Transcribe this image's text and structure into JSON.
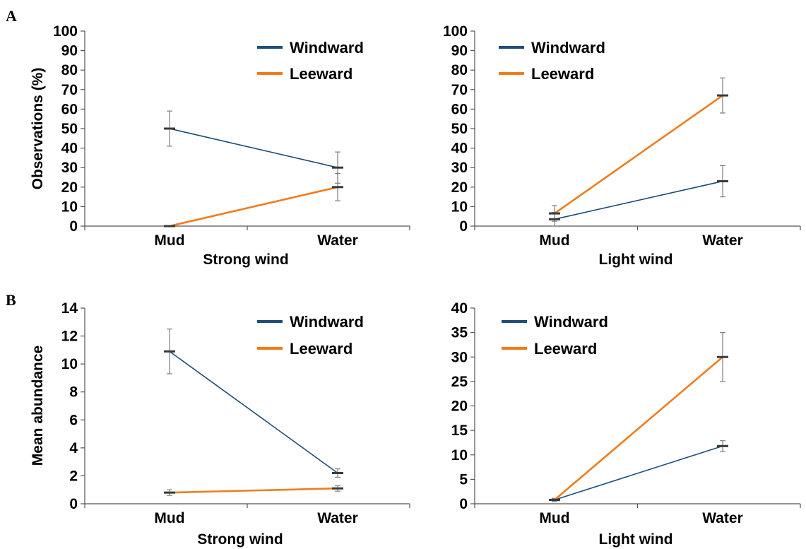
{
  "panel_letters": [
    "A",
    "B"
  ],
  "colors": {
    "windward": "#1f4e79",
    "leeward": "#f07c1c",
    "error_bar": "#7f7f7f",
    "axis": "#555555"
  },
  "chart_data": [
    {
      "type": "line",
      "panel": "A",
      "categories": [
        "Mud",
        "Water"
      ],
      "xlabel": "Strong wind",
      "ylabel": "Observations (%)",
      "ylim": [
        0,
        100
      ],
      "yticks": [
        0,
        10,
        20,
        30,
        40,
        50,
        60,
        70,
        80,
        90,
        100
      ],
      "legend": "top-right",
      "grid": false,
      "series": [
        {
          "name": "Windward",
          "color": "#1f4e79",
          "values": [
            50,
            30
          ],
          "errors": [
            9,
            8
          ]
        },
        {
          "name": "Leeward",
          "color": "#f07c1c",
          "values": [
            0,
            20
          ],
          "errors": [
            0,
            7
          ]
        }
      ]
    },
    {
      "type": "line",
      "panel": "A",
      "categories": [
        "Mud",
        "Water"
      ],
      "xlabel": "Light wind",
      "ylabel": "",
      "ylim": [
        0,
        100
      ],
      "yticks": [
        0,
        10,
        20,
        30,
        40,
        50,
        60,
        70,
        80,
        90,
        100
      ],
      "legend": "top",
      "grid": false,
      "series": [
        {
          "name": "Windward",
          "color": "#1f4e79",
          "values": [
            3.5,
            23
          ],
          "errors": [
            3.5,
            8
          ]
        },
        {
          "name": "Leeward",
          "color": "#f07c1c",
          "values": [
            6.5,
            67
          ],
          "errors": [
            4,
            9
          ]
        }
      ]
    },
    {
      "type": "line",
      "panel": "B",
      "categories": [
        "Mud",
        "Water"
      ],
      "xlabel": "Strong wind",
      "ylabel": "Mean abundance",
      "ylim": [
        0,
        14
      ],
      "yticks": [
        0,
        2,
        4,
        6,
        8,
        10,
        12,
        14
      ],
      "legend": "top-right",
      "grid": false,
      "series": [
        {
          "name": "Windward",
          "color": "#1f4e79",
          "values": [
            10.9,
            2.2
          ],
          "errors": [
            1.6,
            0.3
          ]
        },
        {
          "name": "Leeward",
          "color": "#f07c1c",
          "values": [
            0.8,
            1.1
          ],
          "errors": [
            0.2,
            0.2
          ]
        }
      ]
    },
    {
      "type": "line",
      "panel": "B",
      "categories": [
        "Mud",
        "Water"
      ],
      "xlabel": "Light wind",
      "ylabel": "",
      "ylim": [
        0,
        40
      ],
      "yticks": [
        0,
        5,
        10,
        15,
        20,
        25,
        30,
        35,
        40
      ],
      "legend": "top",
      "grid": false,
      "series": [
        {
          "name": "Windward",
          "color": "#1f4e79",
          "values": [
            0.8,
            11.8
          ],
          "errors": [
            0.3,
            1.1
          ]
        },
        {
          "name": "Leeward",
          "color": "#f07c1c",
          "values": [
            0.8,
            30
          ],
          "errors": [
            0.3,
            5
          ]
        }
      ]
    }
  ]
}
